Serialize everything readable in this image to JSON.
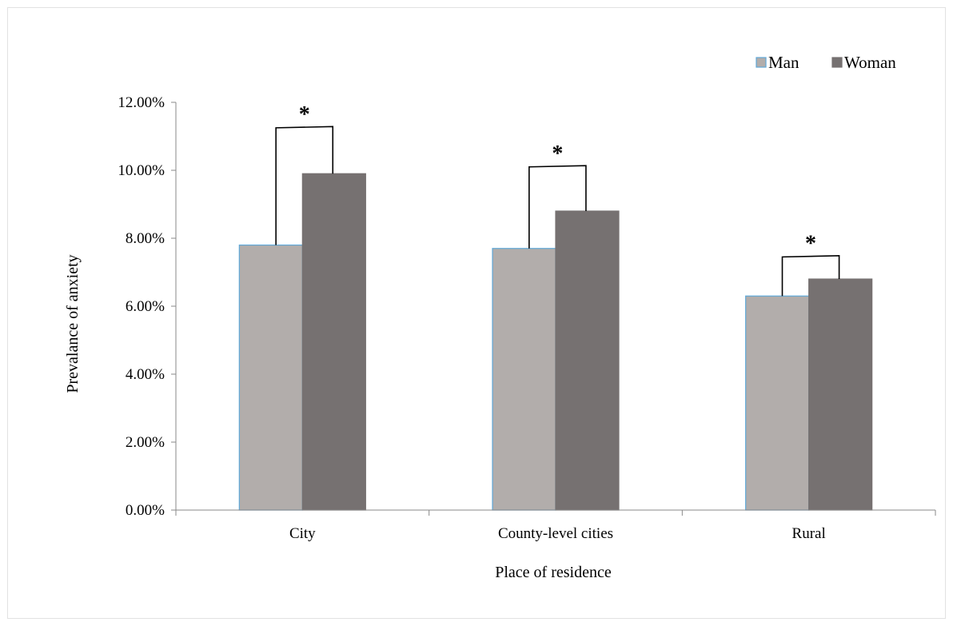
{
  "chart_data": {
    "type": "bar",
    "title": "",
    "xlabel": "Place of residence",
    "ylabel": "Prevalance of anxiety",
    "categories": [
      "City",
      "County-level cities",
      "Rural"
    ],
    "series": [
      {
        "name": "Man",
        "values": [
          7.8,
          7.7,
          6.3
        ],
        "color": "#b2adab",
        "edge": "#5fa8d8"
      },
      {
        "name": "Woman",
        "values": [
          9.9,
          8.8,
          6.8
        ],
        "color": "#767171",
        "edge": "#767171"
      }
    ],
    "ylim": [
      0,
      12
    ],
    "yticks": [
      0,
      2,
      4,
      6,
      8,
      10,
      12
    ],
    "ytick_labels": [
      "0.00%",
      "2.00%",
      "4.00%",
      "6.00%",
      "8.00%",
      "10.00%",
      "12.00%"
    ],
    "grid": false,
    "legend_position": "top-right",
    "significance": [
      {
        "category": "City",
        "mark": "*",
        "bracket_top": 11.25
      },
      {
        "category": "County-level cities",
        "mark": "*",
        "bracket_top": 10.1
      },
      {
        "category": "Rural",
        "mark": "*",
        "bracket_top": 7.45
      }
    ]
  }
}
